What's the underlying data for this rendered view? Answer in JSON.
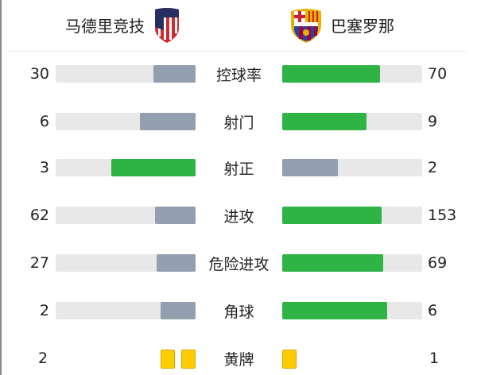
{
  "home": {
    "name": "马德里竞技",
    "logo": "atletico-madrid-crest"
  },
  "away": {
    "name": "巴塞罗那",
    "logo": "fc-barcelona-crest"
  },
  "colors": {
    "winner": "#2fb344",
    "loser": "#939eae",
    "track": "#e8e8e8",
    "card": "#ffcc00"
  },
  "stats": [
    {
      "label": "控球率",
      "home": 30,
      "away": 70
    },
    {
      "label": "射门",
      "home": 6,
      "away": 9
    },
    {
      "label": "射正",
      "home": 3,
      "away": 2
    },
    {
      "label": "进攻",
      "home": 62,
      "away": 153
    },
    {
      "label": "危险进攻",
      "home": 27,
      "away": 69
    },
    {
      "label": "角球",
      "home": 2,
      "away": 6
    }
  ],
  "yellow_cards": {
    "label": "黄牌",
    "home": 2,
    "away": 1
  }
}
